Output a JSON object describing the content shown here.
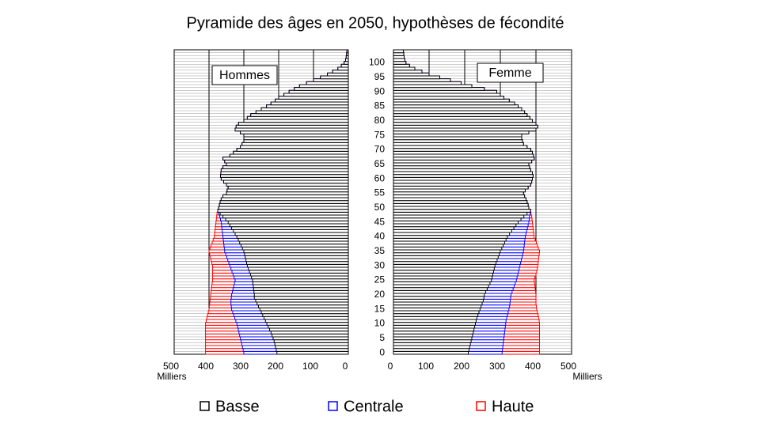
{
  "chart_data": {
    "type": "pyramid",
    "title": "Pyramide des âges en 2050, hypothèses de fécondité",
    "categories": [
      0,
      null,
      null,
      null,
      null,
      5,
      null,
      null,
      null,
      null,
      10,
      null,
      null,
      null,
      null,
      15,
      null,
      null,
      null,
      null,
      20,
      null,
      null,
      null,
      null,
      25,
      null,
      null,
      null,
      null,
      30,
      null,
      null,
      null,
      null,
      35,
      null,
      null,
      null,
      null,
      40,
      null,
      null,
      null,
      null,
      45,
      null,
      null,
      null,
      null,
      50,
      null,
      null,
      null,
      null,
      55,
      null,
      null,
      null,
      null,
      60,
      null,
      null,
      null,
      null,
      65,
      null,
      null,
      null,
      null,
      70,
      null,
      null,
      null,
      null,
      75,
      null,
      null,
      null,
      null,
      80,
      null,
      null,
      null,
      null,
      85,
      null,
      null,
      null,
      null,
      90,
      null,
      null,
      null,
      null,
      95,
      null,
      null,
      null,
      null,
      100,
      null,
      null,
      null,
      null
    ],
    "series": [
      {
        "name": "Basse",
        "color": "#000000"
      },
      {
        "name": "Centrale",
        "color": "#0000ff"
      },
      {
        "name": "Haute",
        "color": "#ff0000"
      }
    ],
    "panels": [
      {
        "label": "Hommes",
        "xlim": [
          500,
          0
        ],
        "xticks": [
          500,
          400,
          300,
          200,
          100,
          0
        ],
        "xlabel": "Milliers",
        "series": [
          {
            "values": [
              205,
              207,
              209,
              211,
              213,
              216,
              219,
              222,
              226,
              230,
              234,
              238,
              242,
              246,
              250,
              254,
              258,
              262,
              266,
              270,
              270,
              271,
              272,
              273,
              274,
              275,
              278,
              281,
              284,
              287,
              290,
              292,
              294,
              296,
              298,
              300,
              304,
              308,
              312,
              316,
              320,
              325,
              330,
              335,
              340,
              345,
              352,
              360,
              368,
              375,
              372,
              370,
              368,
              365,
              360,
              350,
              348,
              345,
              350,
              358,
              365,
              367,
              366,
              365,
              360,
              350,
              355,
              360,
              340,
              330,
              320,
              310,
              305,
              300,
              300,
              300,
              310,
              325,
              322,
              315,
              300,
              290,
              280,
              265,
              250,
              235,
              222,
              210,
              200,
              185,
              170,
              155,
              140,
              120,
              100,
              80,
              60,
              45,
              30,
              20,
              12,
              8,
              6,
              5,
              4
            ]
          },
          {
            "values": [
              300,
              302,
              304,
              306,
              308,
              310,
              312,
              314,
              316,
              318,
              320,
              323,
              326,
              329,
              332,
              335,
              336,
              337,
              337,
              336,
              335,
              333,
              331,
              329,
              327,
              325,
              328,
              331,
              334,
              337,
              340,
              343,
              346,
              349,
              352,
              355,
              356,
              357,
              358,
              359,
              360,
              361,
              362,
              363,
              364,
              365,
              367,
              369,
              372,
              375,
              372,
              370,
              368,
              365,
              360,
              350,
              348,
              345,
              350,
              358,
              365,
              367,
              366,
              365,
              360,
              350,
              355,
              360,
              340,
              330,
              320,
              310,
              305,
              300,
              300,
              300,
              310,
              325,
              322,
              315,
              300,
              290,
              280,
              265,
              250,
              235,
              222,
              210,
              200,
              185,
              170,
              155,
              140,
              120,
              100,
              80,
              60,
              45,
              30,
              20,
              12,
              8,
              6,
              5,
              4
            ]
          },
          {
            "values": [
              410,
              410,
              410,
              410,
              410,
              410,
              410,
              410,
              410,
              410,
              410,
              408,
              406,
              404,
              402,
              400,
              399,
              398,
              397,
              396,
              395,
              394,
              393,
              392,
              391,
              390,
              390,
              390,
              390,
              390,
              390,
              392,
              394,
              396,
              398,
              400,
              397,
              394,
              391,
              388,
              385,
              384,
              383,
              382,
              381,
              380,
              379,
              378,
              377,
              375,
              372,
              370,
              368,
              365,
              360,
              350,
              348,
              345,
              350,
              358,
              365,
              367,
              366,
              365,
              360,
              350,
              355,
              360,
              340,
              330,
              320,
              310,
              305,
              300,
              300,
              300,
              310,
              325,
              322,
              315,
              300,
              290,
              280,
              265,
              250,
              235,
              222,
              210,
              200,
              185,
              170,
              155,
              140,
              120,
              100,
              80,
              60,
              45,
              30,
              20,
              12,
              8,
              6,
              5,
              4
            ]
          }
        ]
      },
      {
        "label": "Femme",
        "xlim": [
          0,
          500
        ],
        "xticks": [
          0,
          100,
          200,
          300,
          400,
          500
        ],
        "xlabel": "Milliers",
        "series": [
          {
            "values": [
              210,
              212,
              214,
              216,
              218,
              220,
              222,
              224,
              226,
              228,
              230,
              232,
              234,
              237,
              240,
              243,
              246,
              249,
              252,
              254,
              255,
              259,
              263,
              267,
              271,
              275,
              277,
              279,
              281,
              283,
              285,
              288,
              291,
              294,
              297,
              300,
              304,
              308,
              312,
              316,
              320,
              326,
              332,
              338,
              344,
              350,
              358,
              366,
              375,
              385,
              380,
              378,
              375,
              372,
              368,
              365,
              370,
              378,
              385,
              388,
              390,
              392,
              390,
              385,
              382,
              380,
              388,
              395,
              393,
              390,
              385,
              375,
              365,
              362,
              360,
              360,
              380,
              400,
              405,
              400,
              390,
              383,
              375,
              368,
              360,
              350,
              340,
              325,
              310,
              300,
              290,
              255,
              220,
              190,
              160,
              130,
              100,
              80,
              60,
              45,
              35,
              32,
              30,
              29,
              28
            ]
          },
          {
            "values": [
              305,
              306,
              307,
              308,
              309,
              310,
              311,
              312,
              313,
              314,
              315,
              316,
              318,
              320,
              322,
              324,
              326,
              327,
              328,
              329,
              330,
              333,
              336,
              339,
              342,
              345,
              347,
              349,
              351,
              353,
              355,
              357,
              359,
              361,
              363,
              365,
              366,
              367,
              368,
              369,
              370,
              372,
              374,
              376,
              378,
              380,
              381,
              382,
              384,
              385,
              380,
              378,
              375,
              372,
              368,
              365,
              370,
              378,
              385,
              388,
              390,
              392,
              390,
              385,
              382,
              380,
              388,
              395,
              393,
              390,
              385,
              375,
              365,
              362,
              360,
              360,
              380,
              400,
              405,
              400,
              390,
              383,
              375,
              368,
              360,
              350,
              340,
              325,
              310,
              300,
              290,
              255,
              220,
              190,
              160,
              130,
              100,
              80,
              60,
              45,
              35,
              32,
              30,
              29,
              28
            ]
          },
          {
            "values": [
              410,
              410,
              410,
              410,
              410,
              410,
              410,
              410,
              410,
              410,
              410,
              409,
              408,
              406,
              404,
              402,
              401,
              400,
              400,
              400,
              400,
              399,
              398,
              397,
              396,
              395,
              397,
              400,
              402,
              404,
              405,
              406,
              407,
              408,
              409,
              410,
              407,
              404,
              401,
              398,
              395,
              394,
              393,
              392,
              391,
              390,
              389,
              388,
              386,
              385,
              380,
              378,
              375,
              372,
              368,
              365,
              370,
              378,
              385,
              388,
              390,
              392,
              390,
              385,
              382,
              380,
              388,
              395,
              393,
              390,
              385,
              375,
              365,
              362,
              360,
              360,
              380,
              400,
              405,
              400,
              390,
              383,
              375,
              368,
              360,
              350,
              340,
              325,
              310,
              300,
              290,
              255,
              220,
              190,
              160,
              130,
              100,
              80,
              60,
              45,
              35,
              32,
              30,
              29,
              28
            ]
          }
        ]
      }
    ]
  }
}
